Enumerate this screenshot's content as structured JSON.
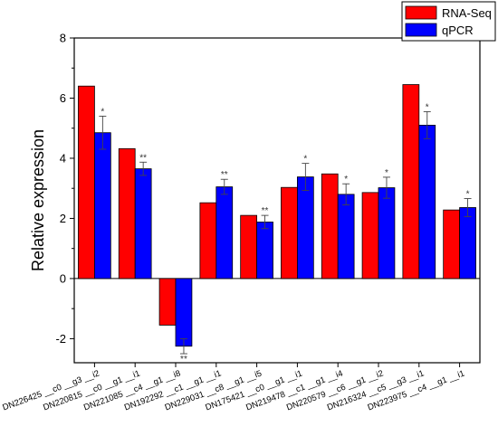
{
  "chart_data": {
    "type": "bar",
    "ylabel": "Relative expression",
    "ylim": [
      -2.8,
      8
    ],
    "yticks": [
      -2,
      0,
      2,
      4,
      6,
      8
    ],
    "legend_position": "top-right",
    "categories": [
      "DN226425__c0__g3__i2",
      "DN220815__c0__g1__i1",
      "DN221085__c4__g1__i8",
      "DN192292__c1__g1__i1",
      "DN229031__c8__g1__i5",
      "DN175421__c0__g1__i1",
      "DN219478__c1__g1__i4",
      "DN220579__c6__g1__i2",
      "DN216324__c5__g3__i1",
      "DN223975__c4__g1__i1"
    ],
    "category_labels": [
      "DN226425 __c0 __g3 __i2",
      "DN220815 __c0 __g1 __i1",
      "DN221085 __c4 __g1 __i8",
      "DN192292 __c1 __g1 __i1",
      "DN229031 __c8 __g1 __i5",
      "DN175421 __c0 __g1 __i1",
      "DN219478 __c1 __g1 __i4",
      "DN220579 __c6 __g1 __i2",
      "DN216324 __c5 __g3 __i1",
      "DN223975 __c4 __g1 __i1"
    ],
    "series": [
      {
        "name": "RNA-Seq",
        "color": "#ff0000",
        "values": [
          6.4,
          4.32,
          -1.55,
          2.52,
          2.1,
          3.03,
          3.48,
          2.86,
          6.45,
          2.28
        ]
      },
      {
        "name": "qPCR",
        "color": "#0000ff",
        "values": [
          4.85,
          3.65,
          -2.25,
          3.05,
          1.88,
          3.38,
          2.8,
          3.02,
          5.1,
          2.36
        ],
        "errors": [
          0.55,
          0.22,
          0.25,
          0.25,
          0.22,
          0.45,
          0.35,
          0.35,
          0.45,
          0.3
        ],
        "significance": [
          "*",
          "**",
          "**",
          "**",
          "**",
          "*",
          "*",
          "*",
          "*",
          "*"
        ]
      }
    ]
  }
}
